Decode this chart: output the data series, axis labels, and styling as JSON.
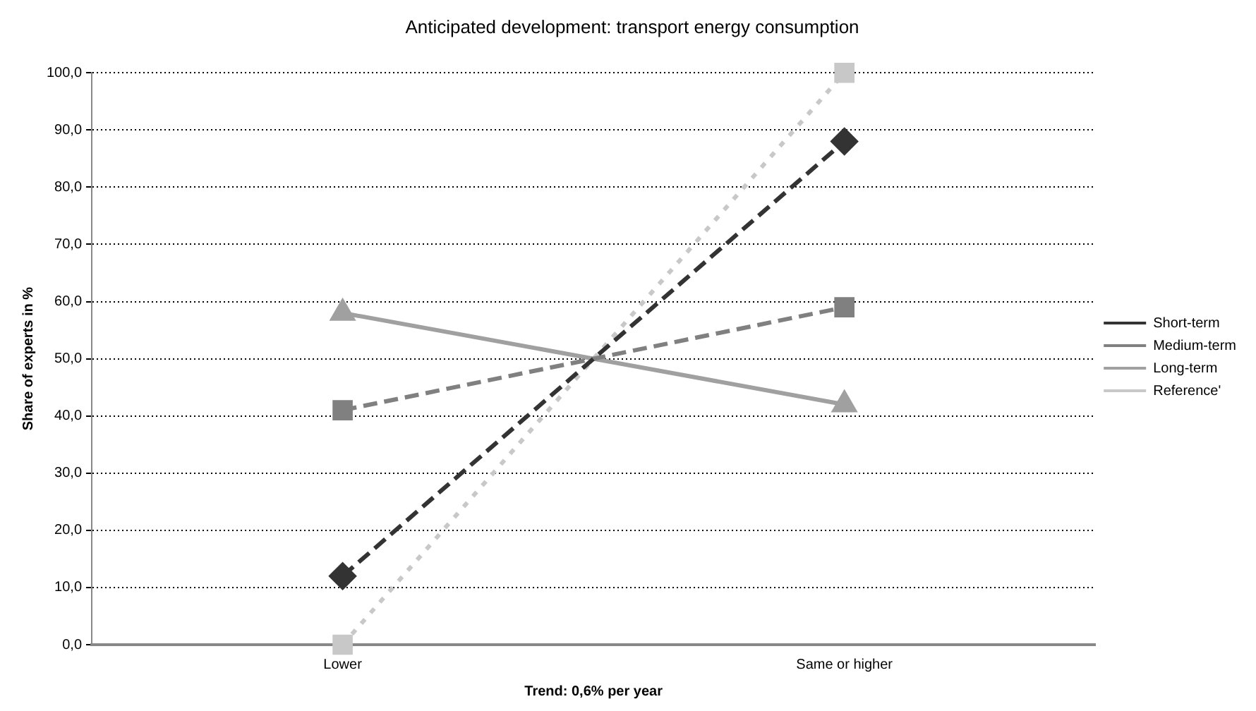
{
  "chart_data": {
    "type": "line",
    "title": "Anticipated development: transport energy consumption",
    "xlabel": "Trend: 0,6% per year",
    "ylabel": "Share of experts in %",
    "categories": [
      "Lower",
      "Same or higher"
    ],
    "series": [
      {
        "name": "Short-term",
        "color": "#333333",
        "values": [
          12,
          88
        ],
        "marker": "diamond",
        "line_style": "dashed"
      },
      {
        "name": "Medium-term",
        "color": "#808080",
        "values": [
          41,
          59
        ],
        "marker": "square",
        "line_style": "dashed"
      },
      {
        "name": "Long-term",
        "color": "#a0a0a0",
        "values": [
          58,
          42
        ],
        "marker": "triangle",
        "line_style": "solid"
      },
      {
        "name": "Reference'",
        "color": "#c8c8c8",
        "values": [
          0,
          100
        ],
        "marker": "square",
        "line_style": "dotted"
      }
    ],
    "ylim": [
      0,
      100
    ],
    "yticks": [
      {
        "value": 0,
        "label": "0,0"
      },
      {
        "value": 10,
        "label": "10,0"
      },
      {
        "value": 20,
        "label": "20,0"
      },
      {
        "value": 30,
        "label": "30,0"
      },
      {
        "value": 40,
        "label": "40,0"
      },
      {
        "value": 50,
        "label": "50,0"
      },
      {
        "value": 60,
        "label": "60,0"
      },
      {
        "value": 70,
        "label": "70,0"
      },
      {
        "value": 80,
        "label": "80,0"
      },
      {
        "value": 90,
        "label": "90,0"
      },
      {
        "value": 100,
        "label": "100,0"
      }
    ],
    "grid": "y",
    "legend": "right"
  }
}
